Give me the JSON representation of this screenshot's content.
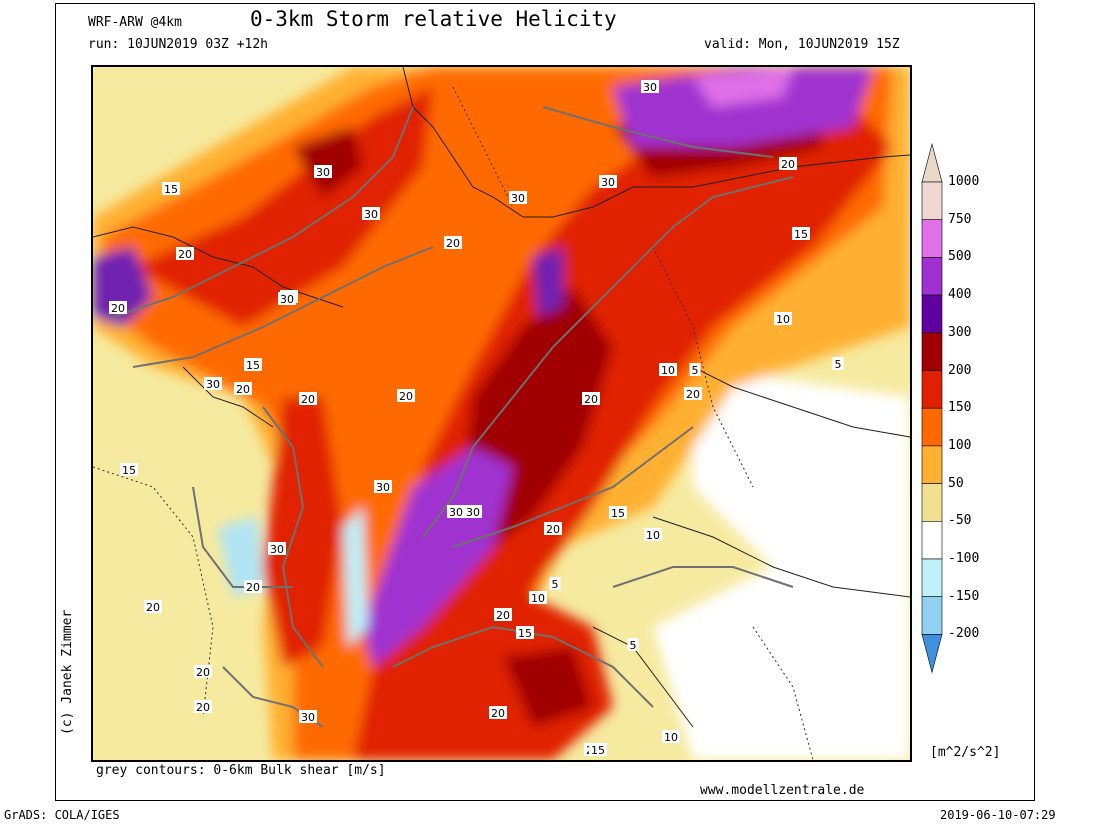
{
  "header": {
    "model": "WRF-ARW @4km",
    "title": "0-3km Storm relative Helicity",
    "run": "run: 10JUN2019 03Z +12h",
    "valid": "valid: Mon, 10JUN2019 15Z"
  },
  "footer": {
    "contours_note": "grey contours: 0-6km Bulk shear [m/s]",
    "website": "www.modellzentrale.de",
    "grads": "GrADS: COLA/IGES",
    "timestamp": "2019-06-10-07:29",
    "credit": "(c) Janek Zimmer"
  },
  "colorbar": {
    "units": "[m^2/s^2]",
    "levels": [
      {
        "label": "1000",
        "color": "#f0d8d0"
      },
      {
        "label": "750",
        "color": "#e070e8"
      },
      {
        "label": "500",
        "color": "#a030d0"
      },
      {
        "label": "400",
        "color": "#6000a0"
      },
      {
        "label": "300",
        "color": "#a00000"
      },
      {
        "label": "200",
        "color": "#e02000"
      },
      {
        "label": "150",
        "color": "#ff6a00"
      },
      {
        "label": "100",
        "color": "#ffb030"
      },
      {
        "label": "50",
        "color": "#f0e090"
      },
      {
        "label": "-50",
        "color": "#ffffff"
      },
      {
        "label": "-100",
        "color": "#c0f0f8"
      },
      {
        "label": "-150",
        "color": "#90d0f0"
      },
      {
        "label": "-200",
        "color": "#60a8e8"
      }
    ],
    "top_color": "#e8d8c8",
    "bottom_color": "#4090e0"
  },
  "contour_labels": [
    {
      "text": "30"
    },
    {
      "text": "30"
    },
    {
      "text": "30"
    },
    {
      "text": "30"
    },
    {
      "text": "20"
    },
    {
      "text": "15"
    },
    {
      "text": "20"
    },
    {
      "text": "20"
    },
    {
      "text": "30"
    },
    {
      "text": "20"
    },
    {
      "text": "30"
    },
    {
      "text": "30"
    },
    {
      "text": "20"
    },
    {
      "text": "20"
    },
    {
      "text": "20"
    },
    {
      "text": "15"
    },
    {
      "text": "30"
    },
    {
      "text": "20"
    },
    {
      "text": "15"
    },
    {
      "text": "20"
    },
    {
      "text": "10"
    },
    {
      "text": "5"
    },
    {
      "text": "10"
    },
    {
      "text": "5"
    },
    {
      "text": "20"
    },
    {
      "text": "20"
    },
    {
      "text": "15"
    },
    {
      "text": "15"
    },
    {
      "text": "10"
    },
    {
      "text": "30"
    },
    {
      "text": "30"
    },
    {
      "text": "20"
    },
    {
      "text": "30"
    },
    {
      "text": "20"
    },
    {
      "text": "5"
    },
    {
      "text": "10"
    },
    {
      "text": "20"
    },
    {
      "text": "15"
    },
    {
      "text": "5"
    },
    {
      "text": "20"
    },
    {
      "text": "20"
    },
    {
      "text": "30"
    },
    {
      "text": "20"
    },
    {
      "text": "10"
    },
    {
      "text": "15"
    },
    {
      "text": "20"
    }
  ]
}
